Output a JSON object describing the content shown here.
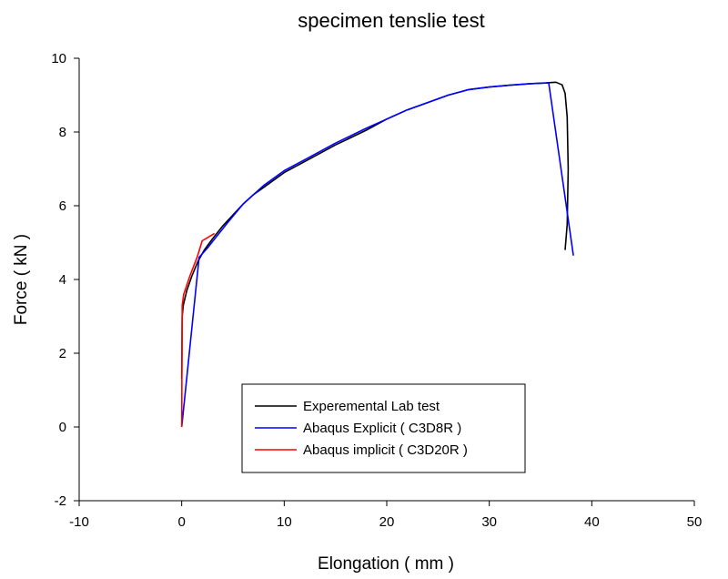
{
  "chart_data": {
    "type": "line",
    "title": "specimen tenslie test",
    "xlabel": "Elongation ( mm )",
    "ylabel": "Force ( kN )",
    "xlim": [
      -10,
      50
    ],
    "ylim": [
      -2,
      10
    ],
    "xticks": [
      -10,
      0,
      10,
      20,
      30,
      40,
      50
    ],
    "yticks": [
      -2,
      0,
      2,
      4,
      6,
      8,
      10
    ],
    "grid": false,
    "legend_position": "bottom-center",
    "series": [
      {
        "name": "Experemental Lab test",
        "color": "#000000",
        "x": [
          0,
          0.05,
          0.15,
          0.5,
          1.0,
          1.6,
          2.2,
          3.0,
          4.0,
          5.0,
          6.0,
          7.0,
          8.0,
          10.0,
          12.0,
          15.0,
          18.0,
          20.0,
          22.0,
          24.0,
          26.0,
          28.0,
          30.0,
          32.0,
          34.0,
          35.5,
          36.5,
          37.1,
          37.4,
          37.6,
          37.7,
          37.6,
          37.4
        ],
        "y": [
          1.3,
          3.0,
          3.3,
          3.7,
          4.1,
          4.5,
          4.8,
          5.1,
          5.45,
          5.75,
          6.05,
          6.3,
          6.5,
          6.9,
          7.2,
          7.65,
          8.05,
          8.35,
          8.6,
          8.8,
          9.0,
          9.15,
          9.22,
          9.27,
          9.31,
          9.33,
          9.35,
          9.28,
          9.05,
          8.4,
          7.0,
          5.5,
          4.8
        ]
      },
      {
        "name": "Abaqus Explicit ( C3D8R )",
        "color": "#0000ff",
        "x": [
          0,
          1.7,
          2.5,
          3.5,
          4.5,
          6.0,
          8.0,
          10.0,
          12.0,
          15.0,
          18.0,
          20.0,
          22.0,
          24.0,
          26.0,
          28.0,
          30.0,
          32.0,
          34.0,
          35.8,
          37.0,
          38.2
        ],
        "y": [
          0,
          4.6,
          4.85,
          5.2,
          5.55,
          6.05,
          6.55,
          6.95,
          7.25,
          7.7,
          8.1,
          8.35,
          8.6,
          8.8,
          9.0,
          9.15,
          9.22,
          9.27,
          9.31,
          9.33,
          7.0,
          4.65
        ]
      },
      {
        "name": "Abaqus implicit ( C3D20R )",
        "color": "#ff0000",
        "x": [
          0,
          0.02,
          0.05,
          0.2,
          0.8,
          1.5,
          2.0,
          3.2
        ],
        "y": [
          0,
          1.5,
          3.3,
          3.6,
          4.1,
          4.6,
          5.05,
          5.25
        ]
      }
    ]
  }
}
